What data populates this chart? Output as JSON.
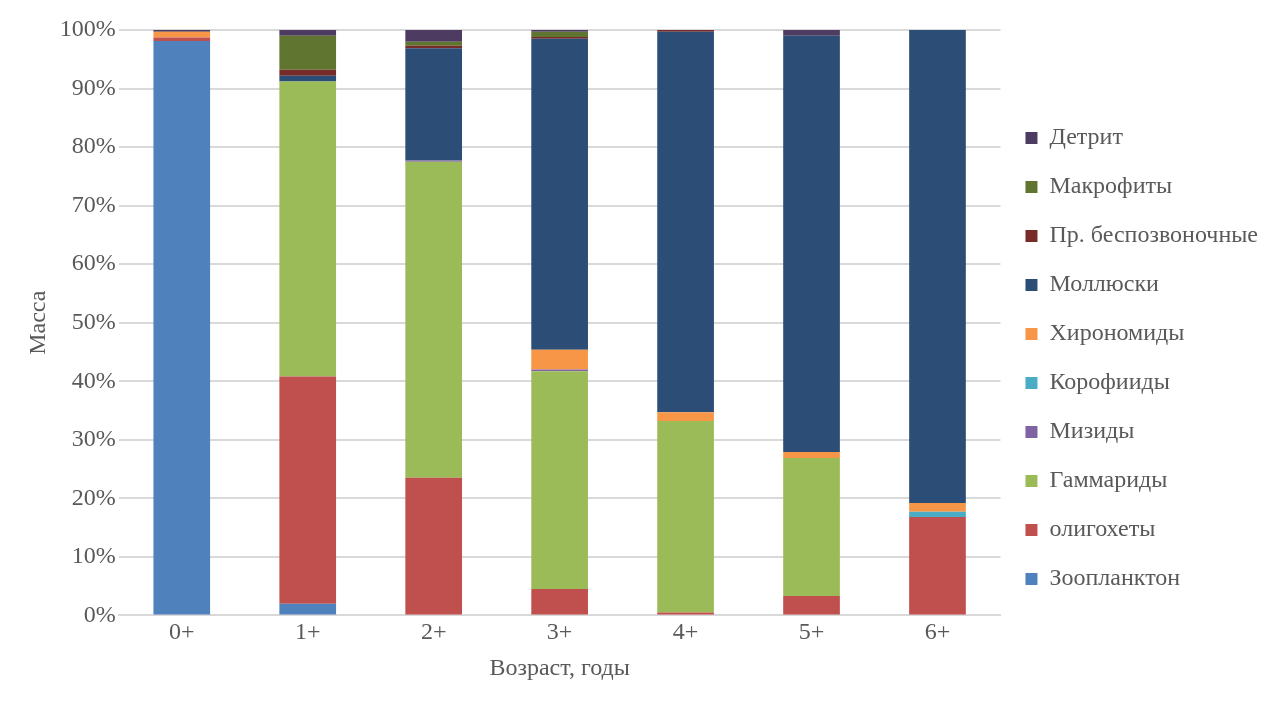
{
  "chart_data": {
    "type": "bar",
    "stacked": true,
    "xlabel": "Возраст, годы",
    "ylabel": "Масса",
    "categories": [
      "0+",
      "1+",
      "2+",
      "3+",
      "4+",
      "5+",
      "6+"
    ],
    "ylim": [
      0,
      100
    ],
    "yticks": [
      {
        "value": 0,
        "label": "0%"
      },
      {
        "value": 10,
        "label": "10%"
      },
      {
        "value": 20,
        "label": "20%"
      },
      {
        "value": 30,
        "label": "30%"
      },
      {
        "value": 40,
        "label": "40%"
      },
      {
        "value": 50,
        "label": "50%"
      },
      {
        "value": 60,
        "label": "60%"
      },
      {
        "value": 70,
        "label": "70%"
      },
      {
        "value": 80,
        "label": "80%"
      },
      {
        "value": 90,
        "label": "90%"
      },
      {
        "value": 100,
        "label": "100%"
      }
    ],
    "grid": "y",
    "legend": "right",
    "series": [
      {
        "name": "Зоопланктон",
        "color": "#4f81bd",
        "values": [
          98.1,
          2.0,
          0,
          0,
          0,
          0,
          0
        ]
      },
      {
        "name": "олигохеты",
        "color": "#c0504d",
        "values": [
          0.6,
          38.8,
          23.5,
          4.5,
          0.5,
          3.3,
          16.8
        ]
      },
      {
        "name": "Гаммариды",
        "color": "#9bbb59",
        "values": [
          0,
          50.4,
          54.0,
          37.2,
          32.7,
          23.6,
          0
        ]
      },
      {
        "name": "Мизиды",
        "color": "#8064a2",
        "values": [
          0,
          0,
          0.2,
          0.3,
          0,
          0,
          0
        ]
      },
      {
        "name": "Корофииды",
        "color": "#4bacc6",
        "values": [
          0,
          0,
          0,
          0,
          0,
          0,
          0.9
        ]
      },
      {
        "name": "Хирономиды",
        "color": "#f79646",
        "values": [
          1.0,
          0,
          0,
          3.4,
          1.5,
          1.0,
          1.5
        ]
      },
      {
        "name": "Моллюски",
        "color": "#2c4d75",
        "values": [
          0,
          1.0,
          19.2,
          53.1,
          65.0,
          71.1,
          80.8
        ]
      },
      {
        "name": "Пр. беспозвоночные",
        "color": "#772c2a",
        "values": [
          0,
          1.0,
          0.4,
          0.3,
          0.3,
          0,
          0
        ]
      },
      {
        "name": "Макрофиты",
        "color": "#5f7530",
        "values": [
          0,
          5.8,
          0.7,
          0.9,
          0,
          0,
          0
        ]
      },
      {
        "name": "Детрит",
        "color": "#4d3b62",
        "values": [
          0.3,
          1.0,
          2.0,
          0.3,
          0,
          1.0,
          0
        ]
      }
    ]
  }
}
